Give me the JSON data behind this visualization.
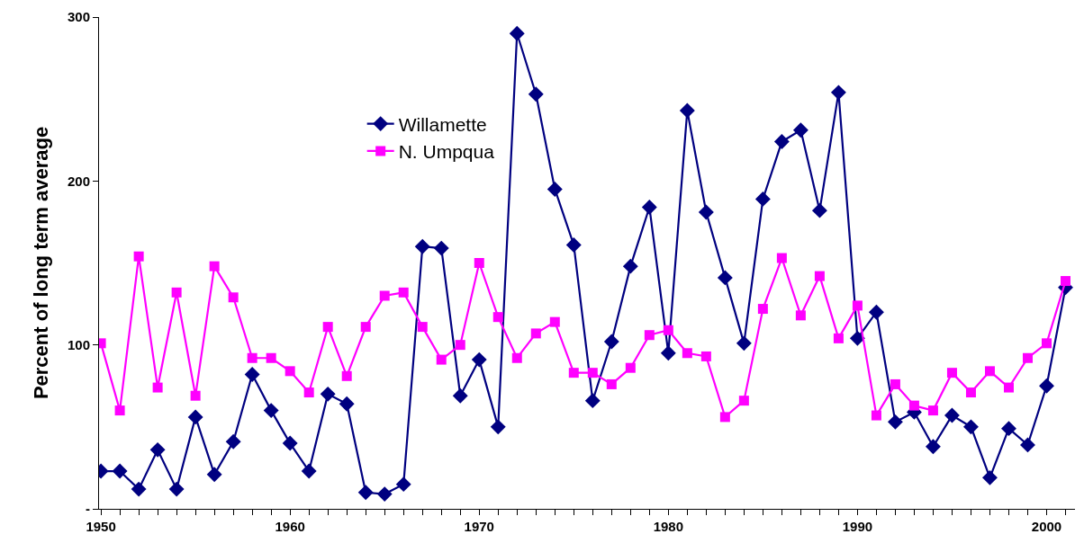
{
  "chart_data": {
    "type": "line",
    "ylabel": "Percent of long term average",
    "x": [
      1950,
      1951,
      1952,
      1953,
      1954,
      1955,
      1956,
      1957,
      1958,
      1959,
      1960,
      1961,
      1962,
      1963,
      1964,
      1965,
      1966,
      1967,
      1968,
      1969,
      1970,
      1971,
      1972,
      1973,
      1974,
      1975,
      1976,
      1977,
      1978,
      1979,
      1980,
      1981,
      1982,
      1983,
      1984,
      1985,
      1986,
      1987,
      1988,
      1989,
      1990,
      1991,
      1992,
      1993,
      1994,
      1995,
      1996,
      1997,
      1998,
      1999,
      2000,
      2001
    ],
    "series": [
      {
        "name": "Willamette",
        "color": "#000080",
        "marker": "diamond",
        "values": [
          23,
          23,
          12,
          36,
          12,
          56,
          21,
          41,
          82,
          60,
          40,
          23,
          70,
          64,
          10,
          9,
          15,
          160,
          159,
          69,
          91,
          50,
          290,
          253,
          195,
          161,
          66,
          102,
          148,
          184,
          95,
          243,
          181,
          141,
          101,
          189,
          224,
          231,
          182,
          254,
          104,
          120,
          53,
          59,
          38,
          57,
          50,
          19,
          49,
          39,
          75,
          135
        ]
      },
      {
        "name": "N. Umpqua",
        "color": "#ff00ff",
        "marker": "square",
        "values": [
          101,
          60,
          154,
          74,
          132,
          69,
          148,
          129,
          92,
          92,
          84,
          71,
          111,
          81,
          111,
          130,
          132,
          111,
          91,
          100,
          150,
          117,
          92,
          107,
          114,
          83,
          83,
          76,
          86,
          106,
          109,
          95,
          93,
          56,
          66,
          122,
          153,
          118,
          142,
          104,
          124,
          57,
          76,
          63,
          60,
          83,
          71,
          84,
          74,
          92,
          101,
          139
        ]
      }
    ],
    "xlim": [
      1949.9,
      2001.5
    ],
    "xticks": [
      1950,
      {
        "value": 1951,
        "label": null
      },
      {
        "value": 1952,
        "label": null
      },
      {
        "value": 1953,
        "label": null
      },
      {
        "value": 1954,
        "label": null
      },
      {
        "value": 1955,
        "label": null
      },
      {
        "value": 1956,
        "label": null
      },
      {
        "value": 1957,
        "label": null
      },
      {
        "value": 1958,
        "label": null
      },
      {
        "value": 1959,
        "label": null
      },
      1960,
      {
        "value": 1961,
        "label": null
      },
      {
        "value": 1962,
        "label": null
      },
      {
        "value": 1963,
        "label": null
      },
      {
        "value": 1964,
        "label": null
      },
      {
        "value": 1965,
        "label": null
      },
      {
        "value": 1966,
        "label": null
      },
      {
        "value": 1967,
        "label": null
      },
      {
        "value": 1968,
        "label": null
      },
      {
        "value": 1969,
        "label": null
      },
      1970,
      {
        "value": 1971,
        "label": null
      },
      {
        "value": 1972,
        "label": null
      },
      {
        "value": 1973,
        "label": null
      },
      {
        "value": 1974,
        "label": null
      },
      {
        "value": 1975,
        "label": null
      },
      {
        "value": 1976,
        "label": null
      },
      {
        "value": 1977,
        "label": null
      },
      {
        "value": 1978,
        "label": null
      },
      {
        "value": 1979,
        "label": null
      },
      1980,
      {
        "value": 1981,
        "label": null
      },
      {
        "value": 1982,
        "label": null
      },
      {
        "value": 1983,
        "label": null
      },
      {
        "value": 1984,
        "label": null
      },
      {
        "value": 1985,
        "label": null
      },
      {
        "value": 1986,
        "label": null
      },
      {
        "value": 1987,
        "label": null
      },
      {
        "value": 1988,
        "label": null
      },
      {
        "value": 1989,
        "label": null
      },
      1990,
      {
        "value": 1991,
        "label": null
      },
      {
        "value": 1992,
        "label": null
      },
      {
        "value": 1993,
        "label": null
      },
      {
        "value": 1994,
        "label": null
      },
      {
        "value": 1995,
        "label": null
      },
      {
        "value": 1996,
        "label": null
      },
      {
        "value": 1997,
        "label": null
      },
      {
        "value": 1998,
        "label": null
      },
      {
        "value": 1999,
        "label": null
      },
      2000,
      {
        "value": 2001,
        "label": null
      }
    ],
    "ylim": [
      0,
      300
    ],
    "yticks": [
      {
        "value": 0,
        "label": "-"
      },
      100,
      200,
      300
    ],
    "legend": "top left",
    "line_style": "solid"
  }
}
